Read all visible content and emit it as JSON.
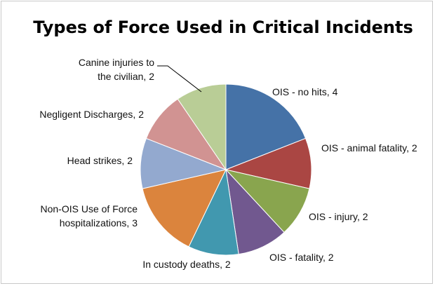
{
  "chart_data": {
    "type": "pie",
    "title": "Types of Force Used in Critical Incidents",
    "unit": "count",
    "slices": [
      {
        "lines": [
          "OIS - no hits, 4"
        ],
        "value": 4,
        "color": "#4572A7",
        "anchor": "start",
        "leader": false
      },
      {
        "lines": [
          "OIS - animal fatality, 2"
        ],
        "value": 2,
        "color": "#AA4643",
        "anchor": "start",
        "leader": false
      },
      {
        "lines": [
          "OIS - injury, 2"
        ],
        "value": 2,
        "color": "#89A54E",
        "anchor": "start",
        "leader": false
      },
      {
        "lines": [
          "OIS - fatality, 2"
        ],
        "value": 2,
        "color": "#71588F",
        "anchor": "start",
        "leader": false
      },
      {
        "lines": [
          "In custody deaths, 2"
        ],
        "value": 2,
        "color": "#4198AF",
        "anchor": "middle",
        "leader": false
      },
      {
        "lines": [
          "Non-OIS Use of Force",
          "hospitalizations,  3"
        ],
        "value": 3,
        "color": "#DB843D",
        "anchor": "end",
        "leader": false
      },
      {
        "lines": [
          "Head strikes, 2"
        ],
        "value": 2,
        "color": "#93A9CF",
        "anchor": "end",
        "leader": false
      },
      {
        "lines": [
          "Negligent Discharges, 2"
        ],
        "value": 2,
        "color": "#D19392",
        "anchor": "end",
        "leader": false
      },
      {
        "lines": [
          "Canine injuries to",
          "the civilian, 2"
        ],
        "value": 2,
        "color": "#B9CD96",
        "anchor": "end",
        "leader": true
      }
    ]
  }
}
